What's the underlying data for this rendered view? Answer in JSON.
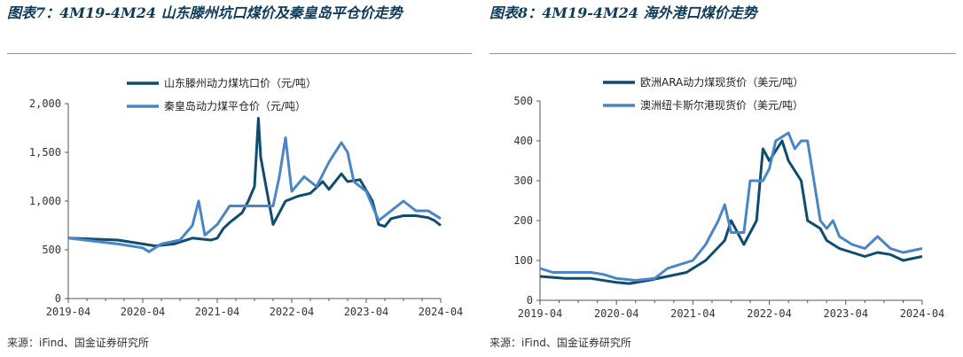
{
  "charts": [
    {
      "title": "图表7：4M19-4M24 山东滕州坑口煤价及秦皇岛平仓价走势",
      "source": "来源：iFind、国金证券研究所",
      "chart_data": {
        "type": "line",
        "title": "图表7：4M19-4M24 山东滕州坑口煤价及秦皇岛平仓价走势",
        "ylim": [
          0,
          2000
        ],
        "yticks": [
          0,
          500,
          1000,
          1500,
          2000
        ],
        "ytick_labels": [
          "0",
          "500",
          "1,000",
          "1,500",
          "2,000"
        ],
        "xticks": [
          "2019-04",
          "2020-04",
          "2021-04",
          "2022-04",
          "2023-04",
          "2024-04"
        ],
        "x_start": "2019-04",
        "x_end": "2024-04",
        "grid": false,
        "legend_position": "top-center",
        "series": [
          {
            "name": "山东滕州动力煤坑口价（元/吨）",
            "color": "#0f4c6e",
            "points": [
              [
                "2019-04",
                620
              ],
              [
                "2019-08",
                610
              ],
              [
                "2019-12",
                600
              ],
              [
                "2020-04",
                560
              ],
              [
                "2020-06",
                540
              ],
              [
                "2020-09",
                560
              ],
              [
                "2020-12",
                620
              ],
              [
                "2021-03",
                600
              ],
              [
                "2021-04",
                620
              ],
              [
                "2021-05",
                720
              ],
              [
                "2021-06",
                780
              ],
              [
                "2021-08",
                880
              ],
              [
                "2021-09",
                1000
              ],
              [
                "2021-10",
                1150
              ],
              [
                "2021-10-20",
                1850
              ],
              [
                "2021-11",
                1450
              ],
              [
                "2021-12",
                1100
              ],
              [
                "2022-01",
                760
              ],
              [
                "2022-02",
                880
              ],
              [
                "2022-03",
                1000
              ],
              [
                "2022-05",
                1050
              ],
              [
                "2022-07",
                1080
              ],
              [
                "2022-09",
                1200
              ],
              [
                "2022-10",
                1120
              ],
              [
                "2022-12",
                1280
              ],
              [
                "2023-01",
                1200
              ],
              [
                "2023-03",
                1220
              ],
              [
                "2023-05",
                1000
              ],
              [
                "2023-06",
                760
              ],
              [
                "2023-07",
                740
              ],
              [
                "2023-08",
                820
              ],
              [
                "2023-10",
                850
              ],
              [
                "2023-12",
                850
              ],
              [
                "2024-02",
                830
              ],
              [
                "2024-03",
                800
              ],
              [
                "2024-04",
                750
              ]
            ]
          },
          {
            "name": "秦皇岛动力煤平仓价（元/吨）",
            "color": "#4a86c6",
            "points": [
              [
                "2019-04",
                620
              ],
              [
                "2019-08",
                590
              ],
              [
                "2019-12",
                560
              ],
              [
                "2020-04",
                520
              ],
              [
                "2020-05",
                480
              ],
              [
                "2020-07",
                560
              ],
              [
                "2020-10",
                600
              ],
              [
                "2020-12",
                750
              ],
              [
                "2021-01",
                1000
              ],
              [
                "2021-02",
                650
              ],
              [
                "2021-04",
                760
              ],
              [
                "2021-06",
                950
              ],
              [
                "2021-08",
                950
              ],
              [
                "2021-10",
                950
              ],
              [
                "2021-12",
                950
              ],
              [
                "2022-01",
                950
              ],
              [
                "2022-02",
                1250
              ],
              [
                "2022-03",
                1650
              ],
              [
                "2022-04",
                1100
              ],
              [
                "2022-06",
                1250
              ],
              [
                "2022-08",
                1150
              ],
              [
                "2022-10",
                1400
              ],
              [
                "2022-12",
                1600
              ],
              [
                "2023-01",
                1500
              ],
              [
                "2023-02",
                1200
              ],
              [
                "2023-04",
                1100
              ],
              [
                "2023-05",
                950
              ],
              [
                "2023-06",
                800
              ],
              [
                "2023-08",
                900
              ],
              [
                "2023-10",
                1000
              ],
              [
                "2023-12",
                900
              ],
              [
                "2024-02",
                900
              ],
              [
                "2024-04",
                820
              ]
            ]
          }
        ]
      }
    },
    {
      "title": "图表8：4M19-4M24 海外港口煤价走势",
      "source": "来源：iFind、国金证券研究所",
      "chart_data": {
        "type": "line",
        "title": "图表8：4M19-4M24 海外港口煤价走势",
        "ylim": [
          0,
          500
        ],
        "yticks": [
          0,
          100,
          200,
          300,
          400,
          500
        ],
        "ytick_labels": [
          "0",
          "100",
          "200",
          "300",
          "400",
          "500"
        ],
        "xticks": [
          "2019-04",
          "2020-04",
          "2021-04",
          "2022-04",
          "2023-04",
          "2024-04"
        ],
        "x_start": "2019-04",
        "x_end": "2024-04",
        "grid": false,
        "legend_position": "top-center",
        "series": [
          {
            "name": "欧洲ARA动力煤现货价（美元/吨）",
            "color": "#0f4c6e",
            "points": [
              [
                "2019-04",
                60
              ],
              [
                "2019-08",
                55
              ],
              [
                "2019-12",
                55
              ],
              [
                "2020-04",
                45
              ],
              [
                "2020-06",
                42
              ],
              [
                "2020-09",
                50
              ],
              [
                "2020-12",
                60
              ],
              [
                "2021-03",
                70
              ],
              [
                "2021-06",
                100
              ],
              [
                "2021-09",
                150
              ],
              [
                "2021-10",
                200
              ],
              [
                "2021-12",
                140
              ],
              [
                "2022-02",
                200
              ],
              [
                "2022-03",
                380
              ],
              [
                "2022-04",
                350
              ],
              [
                "2022-06",
                400
              ],
              [
                "2022-07",
                350
              ],
              [
                "2022-09",
                300
              ],
              [
                "2022-10",
                200
              ],
              [
                "2022-12",
                180
              ],
              [
                "2023-01",
                150
              ],
              [
                "2023-03",
                130
              ],
              [
                "2023-05",
                120
              ],
              [
                "2023-07",
                110
              ],
              [
                "2023-09",
                120
              ],
              [
                "2023-11",
                115
              ],
              [
                "2024-01",
                100
              ],
              [
                "2024-04",
                110
              ]
            ]
          },
          {
            "name": "澳洲纽卡斯尔港现货价（美元/吨）",
            "color": "#4a86c6",
            "points": [
              [
                "2019-04",
                80
              ],
              [
                "2019-06",
                70
              ],
              [
                "2019-09",
                70
              ],
              [
                "2019-12",
                70
              ],
              [
                "2020-02",
                65
              ],
              [
                "2020-04",
                55
              ],
              [
                "2020-07",
                50
              ],
              [
                "2020-10",
                55
              ],
              [
                "2020-12",
                80
              ],
              [
                "2021-02",
                90
              ],
              [
                "2021-04",
                100
              ],
              [
                "2021-06",
                140
              ],
              [
                "2021-08",
                200
              ],
              [
                "2021-09",
                240
              ],
              [
                "2021-10",
                170
              ],
              [
                "2021-12",
                170
              ],
              [
                "2022-01",
                300
              ],
              [
                "2022-03",
                300
              ],
              [
                "2022-04",
                330
              ],
              [
                "2022-05",
                400
              ],
              [
                "2022-06",
                410
              ],
              [
                "2022-07",
                420
              ],
              [
                "2022-08",
                380
              ],
              [
                "2022-09",
                400
              ],
              [
                "2022-10",
                400
              ],
              [
                "2022-11",
                300
              ],
              [
                "2022-12",
                200
              ],
              [
                "2023-01",
                180
              ],
              [
                "2023-02",
                200
              ],
              [
                "2023-03",
                160
              ],
              [
                "2023-05",
                140
              ],
              [
                "2023-07",
                130
              ],
              [
                "2023-09",
                160
              ],
              [
                "2023-11",
                130
              ],
              [
                "2024-01",
                120
              ],
              [
                "2024-04",
                130
              ]
            ]
          }
        ]
      }
    }
  ]
}
